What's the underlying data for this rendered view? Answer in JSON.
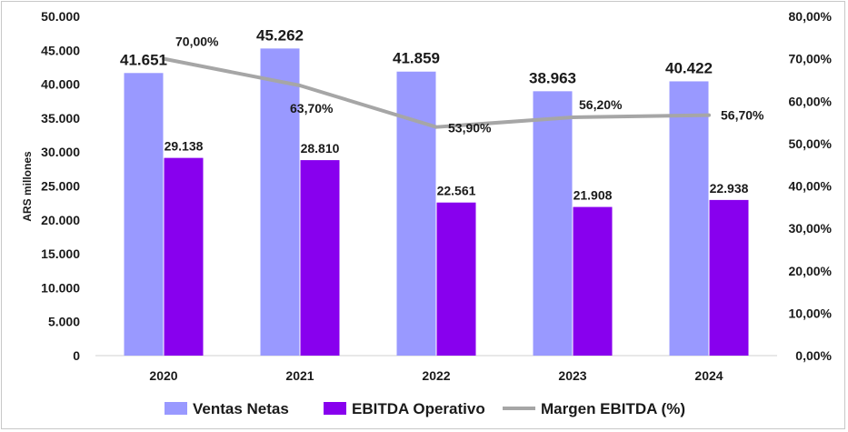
{
  "chart_data": {
    "type": "bar",
    "title": "",
    "xlabel": "",
    "ylabel": "ARS millones",
    "categories": [
      "2020",
      "2021",
      "2022",
      "2023",
      "2024"
    ],
    "ylim": [
      0,
      50000
    ],
    "y2lim": [
      0,
      80
    ],
    "y_ticks": [
      "0",
      "5.000",
      "10.000",
      "15.000",
      "20.000",
      "25.000",
      "30.000",
      "35.000",
      "40.000",
      "45.000",
      "50.000"
    ],
    "y2_ticks": [
      "0,00%",
      "10,00%",
      "20,00%",
      "30,00%",
      "40,00%",
      "50,00%",
      "60,00%",
      "70,00%",
      "80,00%"
    ],
    "grid": false,
    "legend_position": "bottom",
    "series": [
      {
        "name": "Ventas Netas",
        "type": "bar",
        "axis": "left",
        "color": "#9999ff",
        "values": [
          41651,
          45262,
          41859,
          38963,
          40422
        ],
        "labels": [
          "41.651",
          "45.262",
          "41.859",
          "38.963",
          "40.422"
        ]
      },
      {
        "name": "EBITDA Operativo",
        "type": "bar",
        "axis": "left",
        "color": "#8800ee",
        "values": [
          29138,
          28810,
          22561,
          21908,
          22938
        ],
        "labels": [
          "29.138",
          "28.810",
          "22.561",
          "21.908",
          "22.938"
        ]
      },
      {
        "name": "Margen EBITDA (%)",
        "type": "line",
        "axis": "right",
        "color": "#a6a6a6",
        "values": [
          70.0,
          63.7,
          53.9,
          56.2,
          56.7
        ],
        "labels": [
          "70,00%",
          "63,70%",
          "53,90%",
          "56,20%",
          "56,70%"
        ]
      }
    ]
  }
}
